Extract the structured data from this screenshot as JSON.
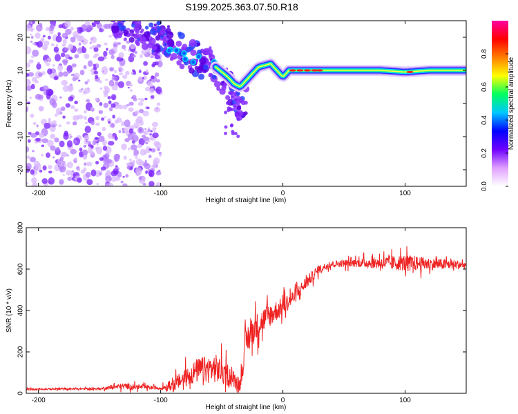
{
  "title": "S199.2025.363.07.50.R18",
  "chart_data": [
    {
      "type": "heatmap",
      "name": "spectrogram",
      "xlabel": "Height of straight line (km)",
      "ylabel": "Frequency (Hz)",
      "xlim": [
        -210,
        150
      ],
      "ylim": [
        -25,
        25
      ],
      "xticks": [
        -200,
        -100,
        0,
        100
      ],
      "yticks": [
        -20,
        -10,
        0,
        10,
        20
      ],
      "xtick_labels": [
        "-200",
        "-100",
        "0",
        "100"
      ],
      "ytick_labels": [
        "-20",
        "-10",
        "0",
        "10",
        "20"
      ],
      "colorbar": {
        "label": "Normalized spectral amplitude",
        "range": [
          0.0,
          1.0
        ],
        "ticks": [
          0.0,
          0.2,
          0.4,
          0.6,
          0.8
        ],
        "tick_labels": [
          "0.0",
          "0.2",
          "0.4",
          "0.6",
          "0.8"
        ],
        "colors": [
          "#ffffff",
          "#e0a0ff",
          "#7000ff",
          "#0000ff",
          "#00c8ff",
          "#00ff60",
          "#ffff00",
          "#ff8000",
          "#ff0000",
          "#ff00a0"
        ]
      },
      "ridge": {
        "x": [
          -95,
          -85,
          -75,
          -65,
          -55,
          -45,
          -40,
          -35,
          -30,
          -25,
          -20,
          -10,
          -5,
          0,
          5,
          20,
          40,
          60,
          80,
          100,
          120,
          150
        ],
        "freq": [
          17,
          15,
          14,
          13,
          11,
          8,
          6,
          5,
          7,
          9,
          11,
          12,
          10,
          8,
          10,
          10,
          10,
          10,
          10,
          9.5,
          10,
          10
        ]
      },
      "noise_region": {
        "x_range": [
          -210,
          -100
        ],
        "freq_range": [
          -25,
          25
        ]
      },
      "colors": {
        "noise": "#8a30ff",
        "ridge_core": "#ff2020",
        "ridge_edge": "#00d8ff"
      }
    },
    {
      "type": "line",
      "name": "snr",
      "xlabel": "Height of straight line (km)",
      "ylabel": "SNR (10 * v/v)",
      "xlim": [
        -210,
        150
      ],
      "ylim": [
        0,
        800
      ],
      "xticks": [
        -200,
        -100,
        0,
        100
      ],
      "yticks": [
        0,
        200,
        400,
        600,
        800
      ],
      "xtick_labels": [
        "-200",
        "-100",
        "0",
        "100"
      ],
      "ytick_labels": [
        "0",
        "200",
        "400",
        "600",
        "800"
      ],
      "envelope": {
        "x": [
          -210,
          -150,
          -130,
          -100,
          -90,
          -70,
          -55,
          -45,
          -35,
          -30,
          -25,
          -15,
          0,
          10,
          20,
          30,
          40,
          60,
          80,
          100,
          120,
          150
        ],
        "mean": [
          20,
          22,
          35,
          25,
          40,
          110,
          120,
          90,
          40,
          250,
          300,
          360,
          420,
          470,
          540,
          600,
          625,
          630,
          630,
          630,
          625,
          620
        ],
        "spread": [
          8,
          10,
          30,
          15,
          60,
          120,
          140,
          110,
          60,
          150,
          140,
          120,
          90,
          70,
          60,
          40,
          30,
          40,
          60,
          80,
          60,
          40
        ]
      },
      "color": "#ee2222"
    }
  ]
}
